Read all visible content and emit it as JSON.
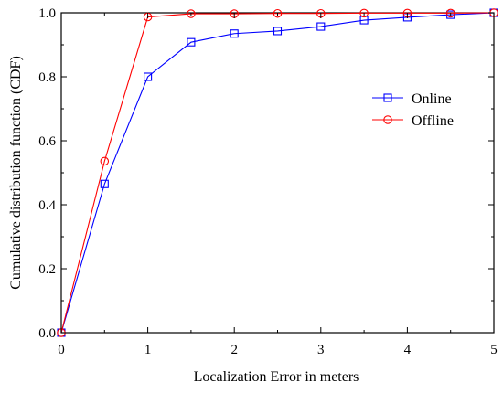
{
  "chart_data": {
    "type": "line",
    "title": "",
    "xlabel": "Localization Error in meters",
    "ylabel": "Cumulative distribution function (CDF)",
    "xlim": [
      0,
      5
    ],
    "ylim": [
      0,
      1.0
    ],
    "xticks": [
      "0",
      "1",
      "2",
      "3",
      "4",
      "5"
    ],
    "yticks": [
      "0.0",
      "0.2",
      "0.4",
      "0.6",
      "0.8",
      "1.0"
    ],
    "grid": false,
    "legend_position": "right",
    "x": [
      0,
      0.5,
      1,
      1.5,
      2,
      2.5,
      3,
      3.5,
      4,
      4.5,
      5
    ],
    "series": [
      {
        "name": "Online",
        "color": "#0000ff",
        "marker": "square",
        "values": [
          0.0,
          0.465,
          0.8,
          0.908,
          0.935,
          0.943,
          0.957,
          0.977,
          0.986,
          0.994,
          1.0
        ]
      },
      {
        "name": "Offline",
        "color": "#ff0000",
        "marker": "circle",
        "values": [
          0.0,
          0.536,
          0.987,
          0.997,
          0.997,
          0.998,
          0.998,
          0.999,
          0.999,
          0.999,
          1.0
        ]
      }
    ]
  }
}
